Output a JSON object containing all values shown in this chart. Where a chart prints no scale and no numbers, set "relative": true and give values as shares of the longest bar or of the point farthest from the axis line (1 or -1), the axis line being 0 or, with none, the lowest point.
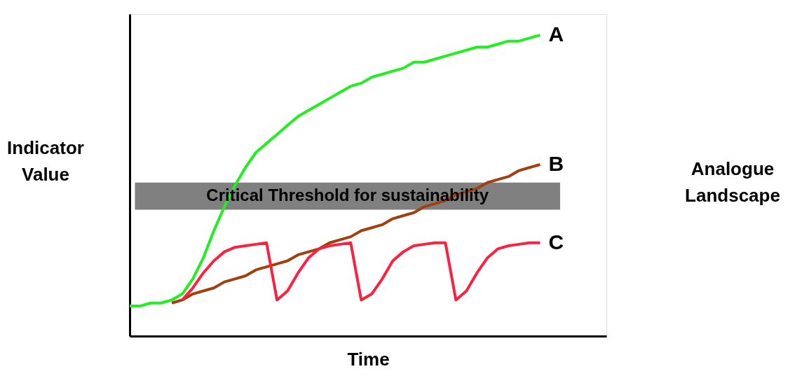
{
  "chart_data": {
    "type": "line",
    "relative": true,
    "xlabel": "Time",
    "ylabel": "Indicator Value",
    "categories": [
      null,
      null,
      null,
      null,
      null,
      null,
      null,
      null,
      null,
      null,
      null,
      null,
      null,
      null,
      null,
      null,
      null,
      null,
      null,
      null,
      null,
      null,
      null,
      null,
      null,
      null,
      null,
      null,
      null,
      null,
      null,
      null,
      null,
      null,
      null,
      null,
      null,
      null,
      null,
      null
    ],
    "series": [
      {
        "name": "A",
        "color": "#22ee22",
        "values": [
          0.1,
          0.1,
          0.11,
          0.11,
          0.12,
          0.14,
          0.19,
          0.26,
          0.35,
          0.43,
          0.5,
          0.56,
          0.61,
          0.64,
          0.67,
          0.7,
          0.73,
          0.75,
          0.77,
          0.79,
          0.81,
          0.83,
          0.84,
          0.86,
          0.87,
          0.88,
          0.89,
          0.91,
          0.91,
          0.92,
          0.93,
          0.94,
          0.95,
          0.96,
          0.96,
          0.97,
          0.98,
          0.98,
          0.99,
          1.0
        ]
      },
      {
        "name": "B",
        "color": "#a0400f",
        "values": [
          null,
          null,
          null,
          null,
          0.11,
          0.12,
          0.14,
          0.15,
          0.16,
          0.18,
          0.19,
          0.2,
          0.22,
          0.23,
          0.24,
          0.25,
          0.27,
          0.28,
          0.29,
          0.31,
          0.32,
          0.33,
          0.35,
          0.36,
          0.37,
          0.39,
          0.4,
          0.41,
          0.43,
          0.44,
          0.45,
          0.47,
          0.48,
          0.49,
          0.51,
          0.52,
          0.53,
          0.55,
          0.56,
          0.57
        ]
      },
      {
        "name": "C",
        "color": "#ff2040",
        "values": [
          null,
          null,
          null,
          null,
          null,
          0.12,
          0.16,
          0.21,
          0.25,
          0.28,
          0.295,
          0.3,
          0.305,
          0.31,
          0.12,
          0.15,
          0.21,
          0.26,
          0.29,
          0.3,
          0.305,
          0.31,
          0.12,
          0.14,
          0.19,
          0.25,
          0.28,
          0.3,
          0.305,
          0.31,
          0.31,
          0.12,
          0.15,
          0.21,
          0.26,
          0.29,
          0.3,
          0.305,
          0.31,
          0.31
        ]
      }
    ],
    "bands": [
      {
        "axis": "y",
        "from": 0.42,
        "to": 0.51,
        "label": "Critical Threshold  for sustainability",
        "color": "#808080"
      }
    ],
    "annotations": [
      "Analogue Landscape"
    ],
    "marker": "none",
    "line_style": "solid"
  }
}
